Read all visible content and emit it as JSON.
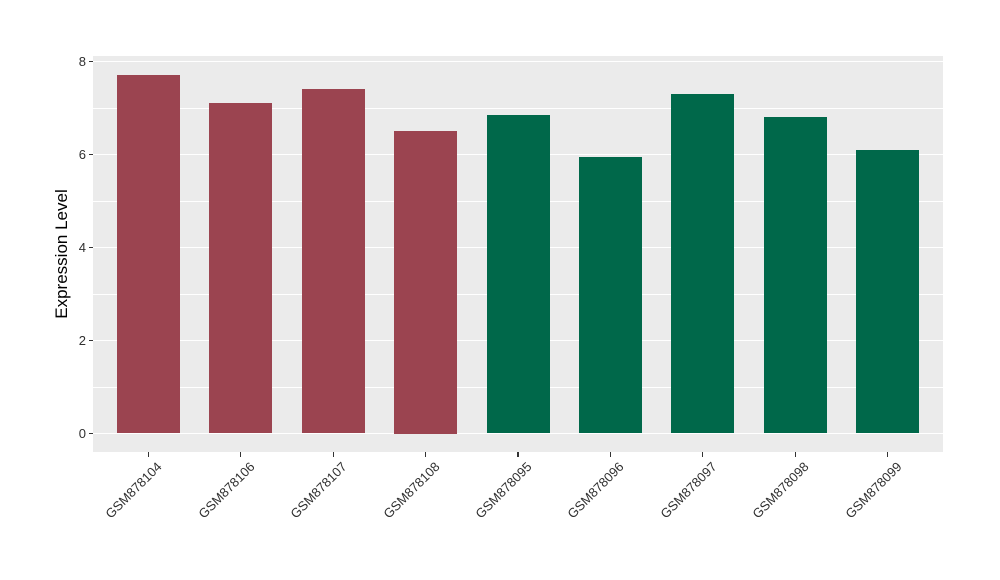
{
  "chart_data": {
    "type": "bar",
    "title": "",
    "xlabel": "",
    "ylabel": "Expression Level",
    "categories": [
      "GSM878104",
      "GSM878106",
      "GSM878107",
      "GSM878108",
      "GSM878095",
      "GSM878096",
      "GSM878097",
      "GSM878098",
      "GSM878099"
    ],
    "values": [
      7.7,
      7.1,
      7.4,
      6.5,
      6.85,
      5.95,
      7.3,
      6.8,
      6.1
    ],
    "bar_colors": [
      "#9B4450",
      "#9B4450",
      "#9B4450",
      "#9B4450",
      "#00684A",
      "#00684A",
      "#00684A",
      "#00684A",
      "#00684A"
    ],
    "ylim": [
      0,
      8
    ],
    "yticks": [
      0,
      2,
      4,
      6,
      8
    ],
    "yminor": [
      1,
      3,
      5,
      7
    ],
    "grid": true,
    "legend": "none",
    "colors": {
      "panel_background": "#EBEBEB",
      "gridline": "#FFFFFF",
      "group_left": "#9B4450",
      "group_right": "#00684A",
      "tick_text": "#303030",
      "axis_title_text": "#000000"
    }
  }
}
